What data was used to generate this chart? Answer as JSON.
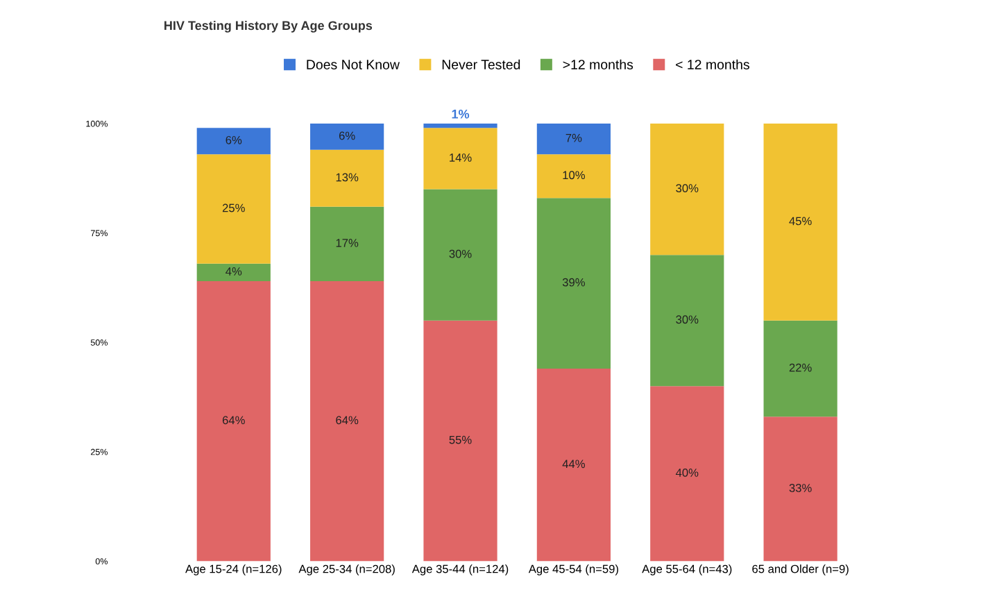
{
  "chart_data": {
    "type": "bar",
    "title": "HIV Testing History By Age Groups",
    "stacked": true,
    "categories": [
      "Age 15-24 (n=126)",
      "Age 25-34 (n=208)",
      "Age 35-44 (n=124)",
      "Age 45-54 (n=59)",
      "Age 55-64 (n=43)",
      "65 and Older (n=9)"
    ],
    "series": [
      {
        "name": "< 12 months",
        "color": "#e06666",
        "values": [
          64,
          64,
          55,
          44,
          40,
          33
        ],
        "value_labels": [
          "64%",
          "64%",
          "55%",
          "44%",
          "40%",
          "33%"
        ]
      },
      {
        "name": ">12 months",
        "color": "#6aa84f",
        "values": [
          4,
          17,
          30,
          39,
          30,
          22
        ],
        "value_labels": [
          "4%",
          "17%",
          "30%",
          "39%",
          "30%",
          "22%"
        ]
      },
      {
        "name": "Never Tested",
        "color": "#f1c232",
        "values": [
          25,
          13,
          14,
          10,
          30,
          45
        ],
        "value_labels": [
          "25%",
          "13%",
          "14%",
          "10%",
          "30%",
          "45%"
        ]
      },
      {
        "name": "Does Not Know",
        "color": "#3c78d8",
        "values": [
          6,
          6,
          1,
          7,
          null,
          null
        ],
        "value_labels": [
          "6%",
          "6%",
          "1%",
          "7%",
          null,
          null
        ]
      }
    ],
    "ylim": [
      0,
      100
    ],
    "yticks": [
      {
        "value": 0,
        "label": "0%"
      },
      {
        "value": 25,
        "label": "25%"
      },
      {
        "value": 50,
        "label": "50%"
      },
      {
        "value": 75,
        "label": "75%"
      },
      {
        "value": 100,
        "label": "100%"
      }
    ],
    "grid": false,
    "legend": "top"
  }
}
